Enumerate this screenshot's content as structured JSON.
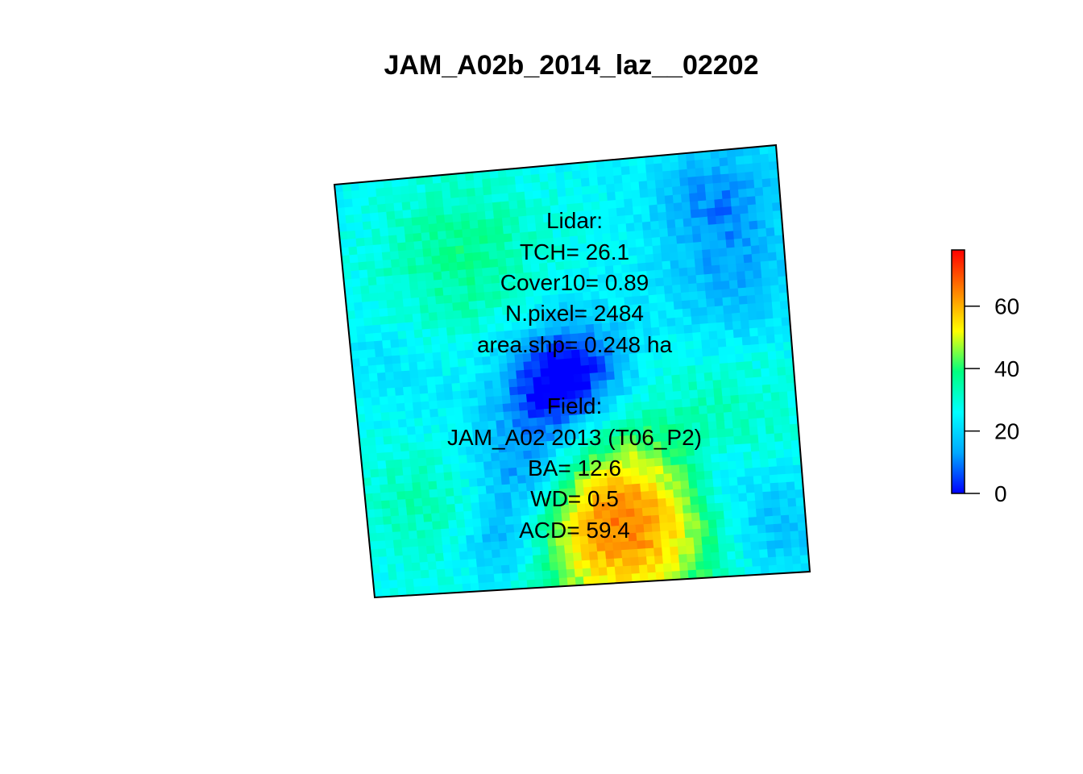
{
  "chart_data": {
    "type": "heatmap",
    "title": "JAM_A02b_2014_laz__02202",
    "xlabel": "",
    "ylabel": "",
    "grid": false,
    "colorbar": {
      "range": [
        0,
        78
      ],
      "ticks": [
        0,
        20,
        40,
        60
      ],
      "tick_labels": [
        "0",
        "20",
        "40",
        "60"
      ],
      "colors": [
        "#0000ff",
        "#00a8ff",
        "#00ffff",
        "#00ff80",
        "#ffff00",
        "#ff8000",
        "#ff0000"
      ]
    },
    "annotations": {
      "lidar": [
        "Lidar:",
        "TCH= 26.1",
        "Cover10= 0.89",
        "N.pixel= 2484",
        "area.shp= 0.248 ha"
      ],
      "field": [
        "Field:",
        "JAM_A02 2013 (T06_P2)",
        "BA= 12.6",
        "WD= 0.5",
        "ACD= 59.4"
      ]
    }
  }
}
